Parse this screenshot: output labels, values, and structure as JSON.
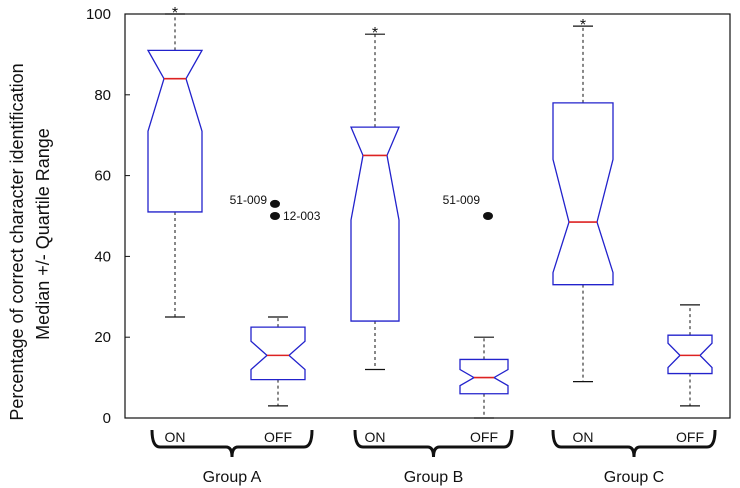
{
  "chart_data": {
    "type": "boxplot",
    "ylabel": [
      "Percentage of correct character identification",
      "Median +/- Quartile Range"
    ],
    "ylim": [
      0,
      100
    ],
    "yticks": [
      0,
      20,
      40,
      60,
      80,
      100
    ],
    "grid": false,
    "groups": [
      {
        "name": "Group A",
        "conditions": [
          "ON",
          "OFF"
        ]
      },
      {
        "name": "Group B",
        "conditions": [
          "ON",
          "OFF"
        ]
      },
      {
        "name": "Group C",
        "conditions": [
          "ON",
          "OFF"
        ]
      }
    ],
    "boxes": [
      {
        "group": "Group A",
        "condition": "ON",
        "whisker_low": 25,
        "q1": 51,
        "median": 84,
        "q3": 91,
        "whisker_high": 100,
        "notch_low": 71,
        "notch_high": 97,
        "max_marker": "*"
      },
      {
        "group": "Group A",
        "condition": "OFF",
        "whisker_low": 3,
        "q1": 9.5,
        "median": 15.5,
        "q3": 22.5,
        "whisker_high": 25,
        "notch_low": 12,
        "notch_high": 19
      },
      {
        "group": "Group B",
        "condition": "ON",
        "whisker_low": 12,
        "q1": 24,
        "median": 65,
        "q3": 72,
        "whisker_high": 95,
        "notch_low": 49,
        "notch_high": 72,
        "max_marker": "*"
      },
      {
        "group": "Group B",
        "condition": "OFF",
        "whisker_low": 0,
        "q1": 6,
        "median": 10,
        "q3": 14.5,
        "whisker_high": 20,
        "notch_low": 8,
        "notch_high": 12
      },
      {
        "group": "Group C",
        "condition": "ON",
        "whisker_low": 9,
        "q1": 33,
        "median": 48.5,
        "q3": 78,
        "whisker_high": 97,
        "notch_low": 36,
        "notch_high": 64,
        "max_marker": "*"
      },
      {
        "group": "Group C",
        "condition": "OFF",
        "whisker_low": 3,
        "q1": 11,
        "median": 15.5,
        "q3": 20.5,
        "whisker_high": 28,
        "notch_low": 12.5,
        "notch_high": 18.5
      }
    ],
    "outliers": [
      {
        "group": "Group A",
        "value": 53,
        "label": "51-009"
      },
      {
        "group": "Group A",
        "value": 50,
        "label": "12-003"
      },
      {
        "group": "Group B",
        "value": 50,
        "label": "51-009"
      }
    ],
    "colors": {
      "box": "#2222cc",
      "median": "#dd2222",
      "whisker": "#111111",
      "outlier": "#111111"
    }
  }
}
